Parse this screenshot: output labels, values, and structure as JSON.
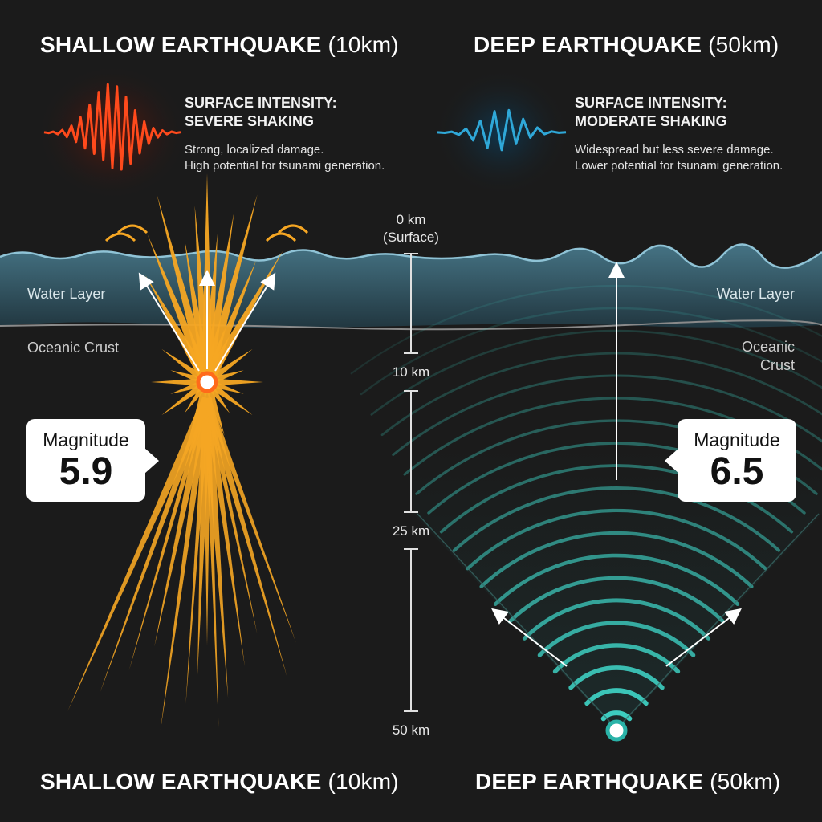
{
  "left": {
    "title_main": "SHALLOW EARTHQUAKE",
    "title_depth": "(10km)",
    "intensity_line1": "SURFACE INTENSITY:",
    "intensity_line2": "SEVERE SHAKING",
    "desc_line1": "Strong, localized damage.",
    "desc_line2": "High potential for tsunami generation.",
    "water_label": "Water Layer",
    "crust_label": "Oceanic Crust",
    "magnitude_label": "Magnitude",
    "magnitude_value": "5.9",
    "footer_main": "SHALLOW EARTHQUAKE",
    "footer_depth": "(10km)",
    "color": "#f5a623",
    "wave_color": "#ff4a1c"
  },
  "right": {
    "title_main": "DEEP EARTHQUAKE",
    "title_depth": "(50km)",
    "intensity_line1": "SURFACE INTENSITY:",
    "intensity_line2": "MODERATE SHAKING",
    "desc_line1": "Widespread but less severe damage.",
    "desc_line2": "Lower potential for tsunami generation.",
    "water_label": "Water Layer",
    "crust_label_line1": "Oceanic",
    "crust_label_line2": "Crust",
    "magnitude_label": "Magnitude",
    "magnitude_value": "6.5",
    "footer_main": "DEEP EARTHQUAKE",
    "footer_depth": "(50km)",
    "color": "#3fd6c8",
    "wave_color": "#2fa8d8"
  },
  "scale": {
    "surface_label_line1": "0 km",
    "surface_label_line2": "(Surface)",
    "ticks": [
      "10 km",
      "25 km",
      "50 km"
    ]
  },
  "colors": {
    "background": "#1b1b1b",
    "water": "#3f6f82",
    "surface_line": "#8fc3d6",
    "crust_line": "#8a8a8a"
  }
}
